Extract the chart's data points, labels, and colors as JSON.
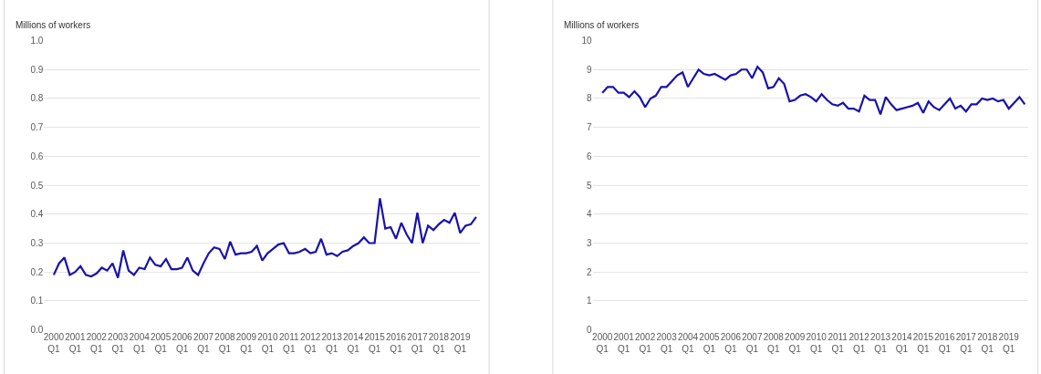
{
  "chart_data": [
    {
      "type": "line",
      "ylabel": "Millions of workers",
      "categories": [
        "2000 Q1",
        null,
        null,
        null,
        "2001 Q1",
        null,
        null,
        null,
        "2002 Q1",
        null,
        null,
        null,
        "2003 Q1",
        null,
        null,
        null,
        "2004 Q1",
        null,
        null,
        null,
        "2005 Q1",
        null,
        null,
        null,
        "2006 Q1",
        null,
        null,
        null,
        "2007 Q1",
        null,
        null,
        null,
        "2008 Q1",
        null,
        null,
        null,
        "2009 Q1",
        null,
        null,
        null,
        "2010 Q1",
        null,
        null,
        null,
        "2011 Q1",
        null,
        null,
        null,
        "2012 Q1",
        null,
        null,
        null,
        "2013 Q1",
        null,
        null,
        null,
        "2014 Q1",
        null,
        null,
        null,
        "2015 Q1",
        null,
        null,
        null,
        "2016 Q1",
        null,
        null,
        null,
        "2017 Q1",
        null,
        null,
        null,
        "2018 Q1",
        null,
        null,
        null,
        "2019 Q1",
        null,
        null,
        null
      ],
      "series": [
        {
          "color": "#1a12a8",
          "values": [
            0.19,
            0.23,
            0.25,
            0.19,
            0.2,
            0.22,
            0.19,
            0.185,
            0.195,
            0.215,
            0.205,
            0.23,
            0.18,
            0.275,
            0.205,
            0.19,
            0.215,
            0.21,
            0.25,
            0.225,
            0.22,
            0.245,
            0.21,
            0.21,
            0.215,
            0.25,
            0.205,
            0.19,
            0.23,
            0.265,
            0.285,
            0.28,
            0.245,
            0.305,
            0.26,
            0.265,
            0.265,
            0.27,
            0.29,
            0.24,
            0.265,
            0.28,
            0.295,
            0.3,
            0.265,
            0.265,
            0.27,
            0.28,
            0.265,
            0.27,
            0.315,
            0.26,
            0.265,
            0.255,
            0.27,
            0.275,
            0.29,
            0.3,
            0.32,
            0.3,
            0.3,
            0.455,
            0.35,
            0.355,
            0.315,
            0.37,
            0.33,
            0.3,
            0.405,
            0.3,
            0.36,
            0.345,
            0.365,
            0.38,
            0.37,
            0.405,
            0.335,
            0.36,
            0.365,
            0.39
          ]
        }
      ],
      "ylim": [
        0,
        1
      ],
      "yticks": [
        {
          "value": 0,
          "label": "0.0"
        },
        {
          "value": 0.1,
          "label": "0.1"
        },
        {
          "value": 0.2,
          "label": "0.2"
        },
        {
          "value": 0.3,
          "label": "0.3"
        },
        {
          "value": 0.4,
          "label": "0.4"
        },
        {
          "value": 0.5,
          "label": "0.5"
        },
        {
          "value": 0.6,
          "label": "0.6"
        },
        {
          "value": 0.7,
          "label": "0.7"
        },
        {
          "value": 0.8,
          "label": "0.8"
        },
        {
          "value": 0.9,
          "label": "0.9"
        },
        {
          "value": 1,
          "label": "1.0"
        }
      ],
      "grid": "y",
      "line_style": "solid"
    },
    {
      "type": "line",
      "ylabel": "Millions of workers",
      "categories": [
        "2000 Q1",
        null,
        null,
        null,
        "2001 Q1",
        null,
        null,
        null,
        "2002 Q1",
        null,
        null,
        null,
        "2003 Q1",
        null,
        null,
        null,
        "2004 Q1",
        null,
        null,
        null,
        "2005 Q1",
        null,
        null,
        null,
        "2006 Q1",
        null,
        null,
        null,
        "2007 Q1",
        null,
        null,
        null,
        "2008 Q1",
        null,
        null,
        null,
        "2009 Q1",
        null,
        null,
        null,
        "2010 Q1",
        null,
        null,
        null,
        "2011 Q1",
        null,
        null,
        null,
        "2012 Q1",
        null,
        null,
        null,
        "2013 Q1",
        null,
        null,
        null,
        "2014 Q1",
        null,
        null,
        null,
        "2015 Q1",
        null,
        null,
        null,
        "2016 Q1",
        null,
        null,
        null,
        "2017 Q1",
        null,
        null,
        null,
        "2018 Q1",
        null,
        null,
        null,
        "2019 Q1",
        null,
        null,
        null
      ],
      "series": [
        {
          "color": "#1a12a8",
          "values": [
            8.2,
            8.4,
            8.4,
            8.2,
            8.2,
            8.05,
            8.25,
            8.05,
            7.7,
            8.0,
            8.1,
            8.4,
            8.4,
            8.6,
            8.8,
            8.9,
            8.4,
            8.7,
            9.0,
            8.85,
            8.8,
            8.85,
            8.75,
            8.65,
            8.8,
            8.85,
            9.0,
            9.0,
            8.7,
            9.1,
            8.9,
            8.35,
            8.4,
            8.7,
            8.5,
            7.9,
            7.95,
            8.1,
            8.15,
            8.05,
            7.9,
            8.15,
            7.95,
            7.8,
            7.75,
            7.85,
            7.65,
            7.65,
            7.55,
            8.1,
            7.95,
            7.95,
            7.45,
            8.05,
            7.8,
            7.6,
            7.65,
            7.7,
            7.75,
            7.85,
            7.5,
            7.9,
            7.7,
            7.6,
            7.8,
            8.0,
            7.65,
            7.75,
            7.55,
            7.8,
            7.8,
            8.0,
            7.95,
            8.0,
            7.9,
            7.95,
            7.65,
            7.85,
            8.05,
            7.8
          ]
        }
      ],
      "ylim": [
        0,
        10
      ],
      "yticks": [
        0,
        1,
        2,
        3,
        4,
        5,
        6,
        7,
        8,
        9,
        10
      ],
      "grid": "y",
      "line_style": "solid"
    }
  ]
}
